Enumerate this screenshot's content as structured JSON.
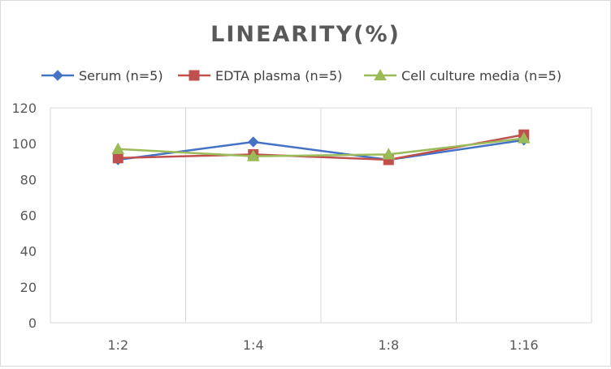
{
  "chart_data": {
    "type": "line",
    "title": "LINEARITY(%)",
    "xlabel": "",
    "ylabel": "",
    "categories": [
      "1:2",
      "1:4",
      "1:8",
      "1:16"
    ],
    "ylim": [
      0,
      120
    ],
    "yticks": [
      0,
      20,
      40,
      60,
      80,
      100,
      120
    ],
    "grid": "vertical",
    "legend_position": "top",
    "series": [
      {
        "name": "Serum (n=5)",
        "values": [
          91,
          101,
          91,
          102
        ],
        "color": "#4472c4",
        "marker": "diamond"
      },
      {
        "name": "EDTA plasma (n=5)",
        "values": [
          92,
          94,
          91,
          105
        ],
        "color": "#c0504d",
        "marker": "square"
      },
      {
        "name": "Cell culture media (n=5)",
        "values": [
          97,
          93,
          94,
          103
        ],
        "color": "#9bbb59",
        "marker": "triangle"
      }
    ]
  }
}
